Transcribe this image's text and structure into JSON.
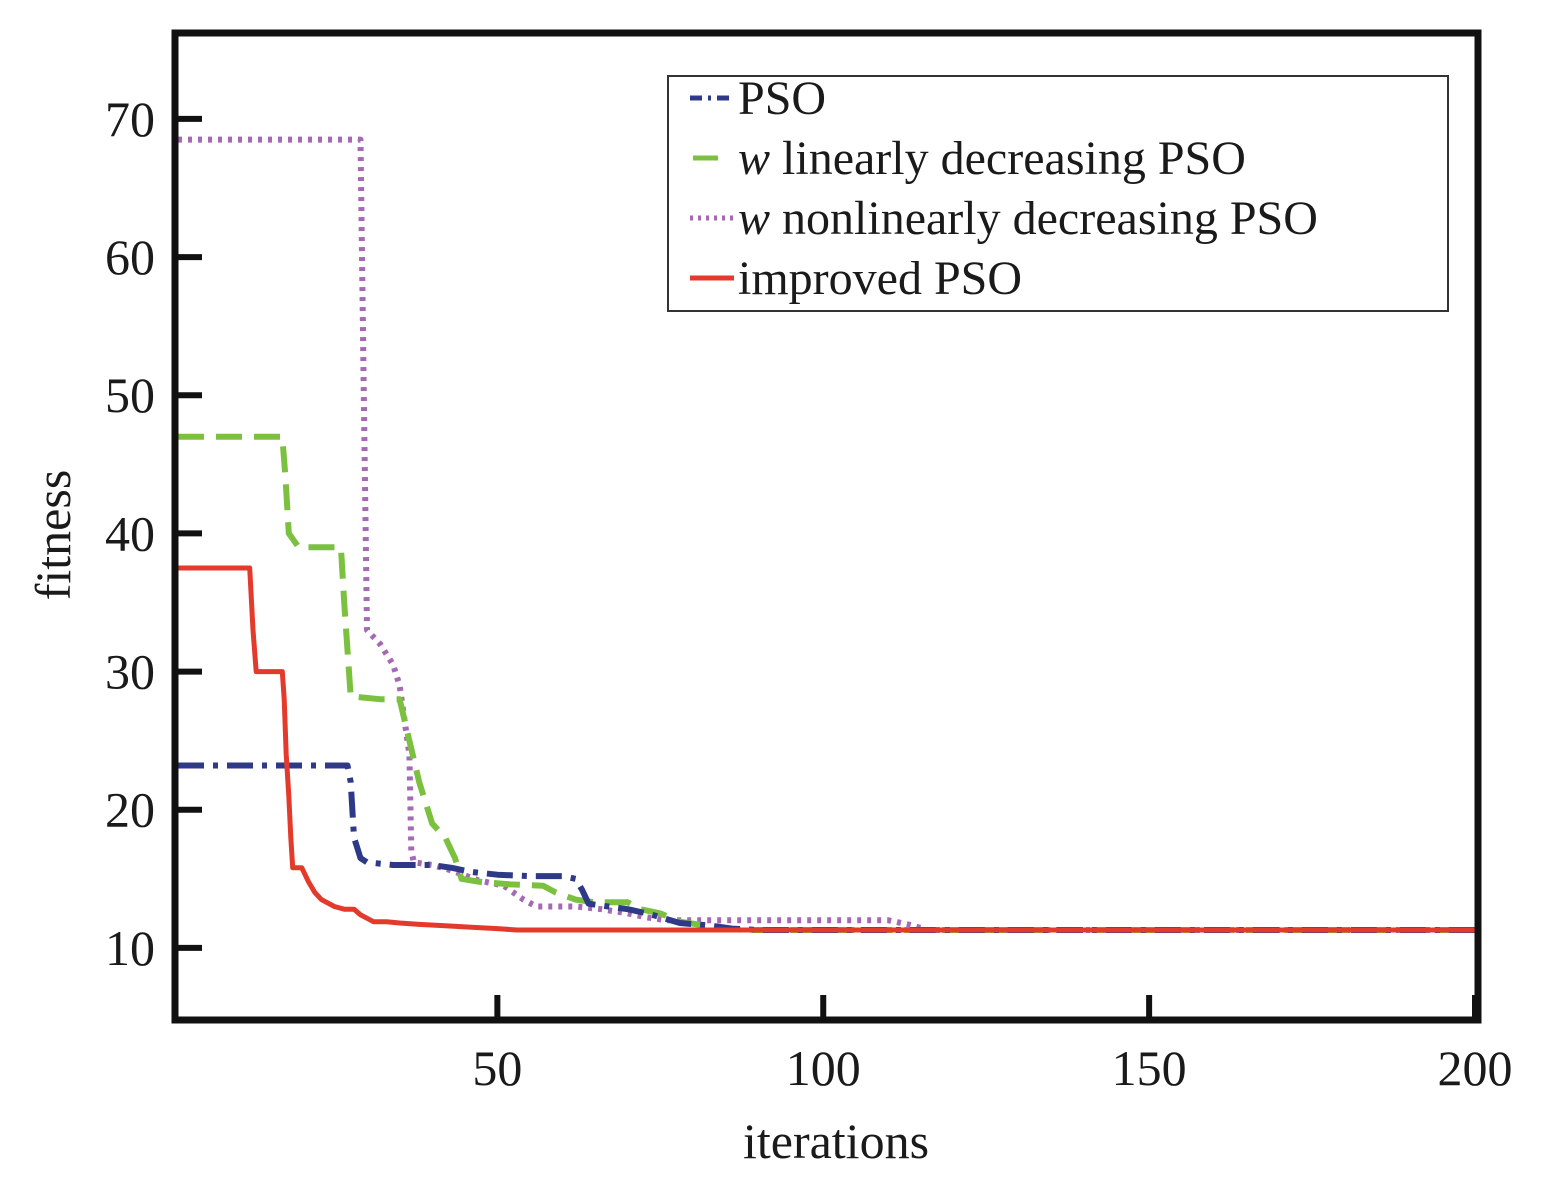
{
  "chart_data": {
    "type": "line",
    "title": "",
    "xlabel": "iterations",
    "ylabel": "fitness",
    "xlim": [
      1,
      200
    ],
    "ylim": [
      5,
      76
    ],
    "grid": false,
    "legend_position": "top-right",
    "x_ticks": [
      "50",
      "100",
      "150",
      "200"
    ],
    "y_ticks": [
      "10",
      "20",
      "30",
      "40",
      "50",
      "60",
      "70"
    ],
    "series": [
      {
        "name": "PSO",
        "style": "dashdot",
        "color": "#2e3a87",
        "points": [
          [
            1,
            23.2
          ],
          [
            27,
            23.2
          ],
          [
            27.5,
            22
          ],
          [
            28,
            18
          ],
          [
            29,
            16.5
          ],
          [
            30,
            16.2
          ],
          [
            34,
            16
          ],
          [
            40,
            16
          ],
          [
            43,
            15.8
          ],
          [
            46,
            15.5
          ],
          [
            50,
            15.3
          ],
          [
            55,
            15.2
          ],
          [
            60,
            15.2
          ],
          [
            62,
            15
          ],
          [
            63,
            14.2
          ],
          [
            64,
            13.2
          ],
          [
            67,
            13
          ],
          [
            70,
            12.8
          ],
          [
            73,
            12.5
          ],
          [
            78,
            11.8
          ],
          [
            83,
            11.6
          ],
          [
            86,
            11.4
          ],
          [
            90,
            11.3
          ],
          [
            200,
            11.3
          ]
        ]
      },
      {
        "name": "w linearly decreasing PSO",
        "prefix": "w",
        "suffix": " linearly decreasing PSO",
        "style": "dashed",
        "color": "#7cc040",
        "points": [
          [
            1,
            47
          ],
          [
            17,
            47
          ],
          [
            17.5,
            44
          ],
          [
            18,
            40
          ],
          [
            19.5,
            39
          ],
          [
            26,
            39
          ],
          [
            26.5,
            35
          ],
          [
            27.5,
            28.2
          ],
          [
            32,
            28
          ],
          [
            35,
            28
          ],
          [
            36,
            26
          ],
          [
            38,
            22
          ],
          [
            40,
            19
          ],
          [
            42,
            18
          ],
          [
            43.5,
            16.5
          ],
          [
            44.5,
            15
          ],
          [
            47,
            14.8
          ],
          [
            52,
            14.6
          ],
          [
            57,
            14.5
          ],
          [
            59,
            14
          ],
          [
            62,
            13.5
          ],
          [
            65,
            13.3
          ],
          [
            70,
            13.3
          ],
          [
            72,
            12.8
          ],
          [
            75,
            12.5
          ],
          [
            78,
            11.9
          ],
          [
            85,
            11.4
          ],
          [
            88,
            11.3
          ],
          [
            200,
            11.3
          ]
        ]
      },
      {
        "name": "w nonlinearly decreasing PSO",
        "prefix": "w",
        "suffix": " nonlinearly decreasing PSO",
        "style": "dotted",
        "color": "#a569b5",
        "points": [
          [
            1,
            68.5
          ],
          [
            29,
            68.5
          ],
          [
            29.5,
            50
          ],
          [
            30,
            33
          ],
          [
            32,
            32
          ],
          [
            34,
            30.5
          ],
          [
            35,
            29
          ],
          [
            36.5,
            24
          ],
          [
            36.8,
            17
          ],
          [
            37.2,
            16.2
          ],
          [
            40,
            16
          ],
          [
            43,
            15.6
          ],
          [
            47,
            14.9
          ],
          [
            51,
            14.5
          ],
          [
            54,
            13.5
          ],
          [
            56,
            13
          ],
          [
            62,
            13
          ],
          [
            66,
            12.8
          ],
          [
            70,
            12.5
          ],
          [
            73,
            12.2
          ],
          [
            76,
            12
          ],
          [
            85,
            12
          ],
          [
            100,
            12
          ],
          [
            110,
            12
          ],
          [
            113,
            11.7
          ],
          [
            116,
            11.3
          ],
          [
            200,
            11.3
          ]
        ]
      },
      {
        "name": "improved PSO",
        "style": "solid",
        "color": "#e43a2c",
        "points": [
          [
            1,
            37.5
          ],
          [
            12,
            37.5
          ],
          [
            12.5,
            33
          ],
          [
            13,
            30
          ],
          [
            17,
            30
          ],
          [
            17.3,
            28
          ],
          [
            17.6,
            24
          ],
          [
            18,
            21
          ],
          [
            18.3,
            18
          ],
          [
            18.6,
            15.8
          ],
          [
            20,
            15.8
          ],
          [
            21,
            14.8
          ],
          [
            22,
            14
          ],
          [
            23,
            13.5
          ],
          [
            25,
            13
          ],
          [
            26.5,
            12.8
          ],
          [
            28,
            12.8
          ],
          [
            29,
            12.4
          ],
          [
            31,
            11.9
          ],
          [
            33,
            11.9
          ],
          [
            35,
            11.8
          ],
          [
            38,
            11.7
          ],
          [
            42,
            11.6
          ],
          [
            46,
            11.5
          ],
          [
            50,
            11.4
          ],
          [
            53,
            11.3
          ],
          [
            200,
            11.3
          ]
        ]
      }
    ]
  }
}
